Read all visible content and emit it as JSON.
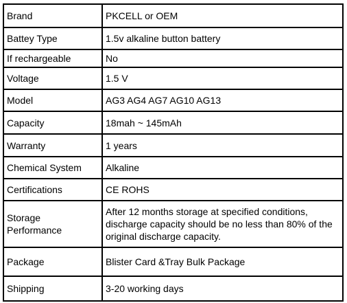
{
  "table": {
    "rows": [
      [
        "Brand",
        "PKCELL or OEM"
      ],
      [
        "Battey Type",
        "1.5v alkaline button battery"
      ],
      [
        "If rechargeable",
        "No"
      ],
      [
        "Voltage",
        "1.5 V"
      ],
      [
        "Model",
        "AG3 AG4 AG7 AG10 AG13"
      ],
      [
        "Capacity",
        "18mah ~ 145mAh"
      ],
      [
        "Warranty",
        "1 years"
      ],
      [
        "Chemical System",
        "Alkaline"
      ],
      [
        "Certifications",
        "CE ROHS"
      ],
      [
        "Storage Performance",
        "After 12 months storage at specified conditions, discharge capacity should be no less than 80% of the original discharge capacity."
      ],
      [
        "Package",
        "Blister Card &Tray Bulk Package"
      ],
      [
        "Shipping",
        "3-20 working days"
      ]
    ]
  }
}
